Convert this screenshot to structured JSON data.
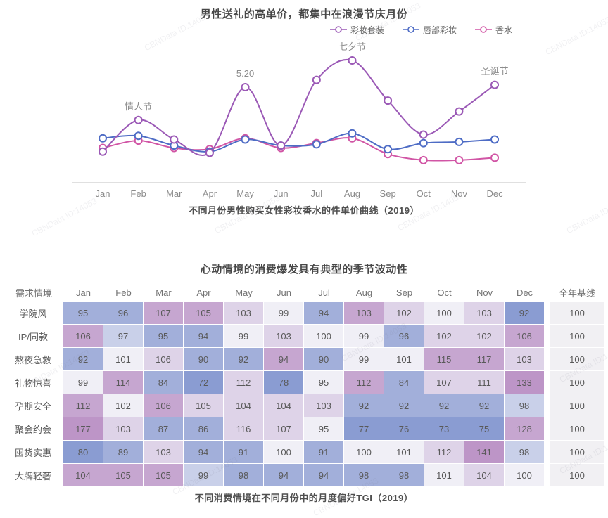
{
  "watermark_text": "CBNData ID:14053",
  "chart_data": [
    {
      "type": "line",
      "title": "男性送礼的高单价，都集中在浪漫节庆月份",
      "caption": "不同月份男性购买女性彩妆香水的件单价曲线（2019）",
      "x": [
        "Jan",
        "Feb",
        "Mar",
        "Apr",
        "May",
        "Jun",
        "Jul",
        "Aug",
        "Sep",
        "Oct",
        "Nov",
        "Dec"
      ],
      "ylim": [
        0,
        110
      ],
      "grid": false,
      "legend_position": "top-right",
      "series": [
        {
          "name": "彩妆套装",
          "color": "#9b59b6",
          "values": [
            25,
            51,
            35,
            24,
            78,
            30,
            84,
            100,
            67,
            39,
            58,
            80
          ]
        },
        {
          "name": "唇部彩妆",
          "color": "#4e6cc5",
          "values": [
            36,
            38,
            30,
            25,
            35,
            30,
            31,
            40,
            27,
            32,
            33,
            35
          ]
        },
        {
          "name": "香水",
          "color": "#d155a5",
          "values": [
            28,
            34,
            28,
            27,
            36,
            28,
            32,
            36,
            23,
            18,
            18,
            20
          ]
        }
      ],
      "annotations": [
        {
          "label": "情人节",
          "month_index": 1
        },
        {
          "label": "5.20",
          "month_index": 4
        },
        {
          "label": "七夕节",
          "month_index": 7
        },
        {
          "label": "圣诞节",
          "month_index": 11
        }
      ]
    },
    {
      "type": "heatmap",
      "title": "心动情境的消费爆发具有典型的季节波动性",
      "caption": "不同消费情境在不同月份中的月度偏好TGI（2019）",
      "row_header": "需求情境",
      "baseline_header": "全年基线",
      "columns": [
        "Jan",
        "Feb",
        "Mar",
        "Apr",
        "May",
        "Jun",
        "Jul",
        "Aug",
        "Sep",
        "Oct",
        "Nov",
        "Dec"
      ],
      "rows": [
        {
          "label": "学院风",
          "values": [
            95,
            96,
            107,
            105,
            103,
            99,
            94,
            103,
            102,
            100,
            103,
            92
          ],
          "tones": [
            -2,
            -2,
            2,
            2,
            1,
            0,
            -2,
            2,
            1,
            0,
            1,
            -3
          ],
          "baseline": 100
        },
        {
          "label": "IP/同款",
          "values": [
            106,
            97,
            95,
            94,
            99,
            103,
            100,
            99,
            96,
            102,
            102,
            106
          ],
          "tones": [
            2,
            -1,
            -2,
            -2,
            0,
            1,
            0,
            0,
            -2,
            1,
            1,
            2
          ],
          "baseline": 100
        },
        {
          "label": "熬夜急救",
          "values": [
            92,
            101,
            106,
            90,
            92,
            94,
            90,
            99,
            101,
            115,
            117,
            103
          ],
          "tones": [
            -2,
            0,
            1,
            -2,
            -2,
            2,
            -2,
            0,
            0,
            2,
            2,
            1
          ],
          "baseline": 100
        },
        {
          "label": "礼物惊喜",
          "values": [
            99,
            114,
            84,
            72,
            112,
            78,
            95,
            112,
            84,
            107,
            111,
            133
          ],
          "tones": [
            0,
            2,
            -2,
            -3,
            1,
            -3,
            0,
            2,
            -2,
            1,
            1,
            3
          ],
          "baseline": 100
        },
        {
          "label": "孕期安全",
          "values": [
            112,
            102,
            106,
            105,
            104,
            104,
            103,
            92,
            92,
            92,
            92,
            98
          ],
          "tones": [
            2,
            0,
            2,
            1,
            1,
            1,
            1,
            -2,
            -2,
            -2,
            -2,
            -1
          ],
          "baseline": 100
        },
        {
          "label": "聚会约会",
          "values": [
            177,
            103,
            87,
            86,
            116,
            107,
            95,
            77,
            76,
            73,
            75,
            128
          ],
          "tones": [
            3,
            1,
            -2,
            -2,
            1,
            1,
            0,
            -3,
            -3,
            -3,
            -3,
            2
          ],
          "baseline": 100
        },
        {
          "label": "囤货实惠",
          "values": [
            80,
            89,
            103,
            94,
            91,
            100,
            91,
            100,
            101,
            112,
            141,
            98
          ],
          "tones": [
            -3,
            -2,
            1,
            -2,
            -2,
            0,
            -2,
            0,
            0,
            1,
            3,
            -1
          ],
          "baseline": 100
        },
        {
          "label": "大牌轻奢",
          "values": [
            104,
            105,
            105,
            99,
            98,
            94,
            94,
            98,
            98,
            101,
            104,
            100
          ],
          "tones": [
            2,
            2,
            2,
            -1,
            -2,
            -2,
            -2,
            -2,
            -2,
            0,
            1,
            0
          ],
          "baseline": 100
        }
      ],
      "palette": {
        "-3": "#8a9cd2",
        "-2": "#a2afda",
        "-1": "#c9d0e9",
        "0": "#f0eff6",
        "1": "#ded3e8",
        "2": "#c6a6d0",
        "3": "#bd95c7",
        "baseline_bg": "#f1f0f3"
      }
    }
  ],
  "colors": {
    "axis_line": "#e0e0e0",
    "axis_label": "#8a8a8a",
    "annotation": "#8c8c8c"
  }
}
